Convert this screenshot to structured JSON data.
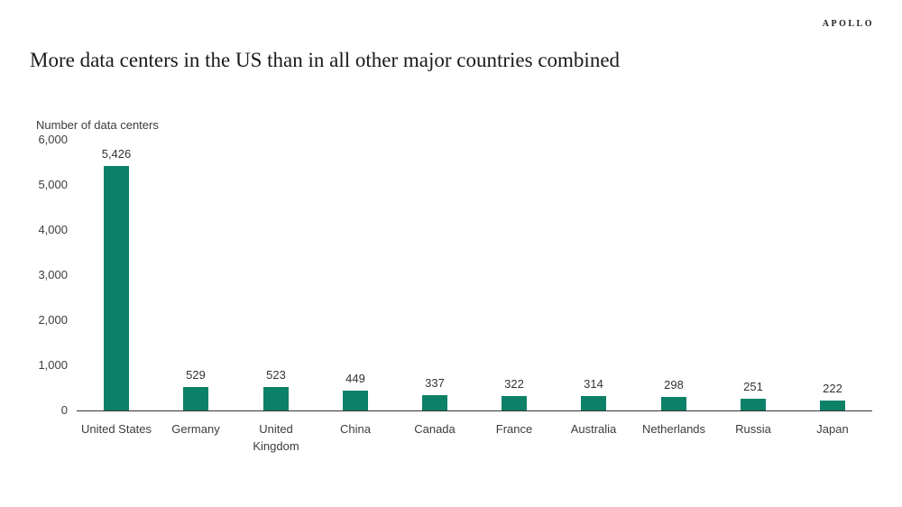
{
  "brand": "APOLLO",
  "title": "More data centers in the US than in all other major countries combined",
  "chart_data": {
    "type": "bar",
    "title": "More data centers in the US than in all other major countries combined",
    "xlabel": "",
    "ylabel": "Number of data centers",
    "categories": [
      "United States",
      "Germany",
      "United Kingdom",
      "China",
      "Canada",
      "France",
      "Australia",
      "Netherlands",
      "Russia",
      "Japan"
    ],
    "categories_display": [
      "United States",
      "Germany",
      "United\nKingdom",
      "China",
      "Canada",
      "France",
      "Australia",
      "Netherlands",
      "Russia",
      "Japan"
    ],
    "values": [
      5426,
      529,
      523,
      449,
      337,
      322,
      314,
      298,
      251,
      222
    ],
    "data_labels": [
      "5,426",
      "529",
      "523",
      "449",
      "337",
      "322",
      "314",
      "298",
      "251",
      "222"
    ],
    "ylim": [
      0,
      6000
    ],
    "ytick_step": 1000,
    "ytick_labels": [
      "0",
      "1,000",
      "2,000",
      "3,000",
      "4,000",
      "5,000",
      "6,000"
    ],
    "grid": false,
    "legend": "none",
    "bar_color": "#0d8168",
    "axis_color": "#333333",
    "text_color": "#3c3c3c"
  }
}
